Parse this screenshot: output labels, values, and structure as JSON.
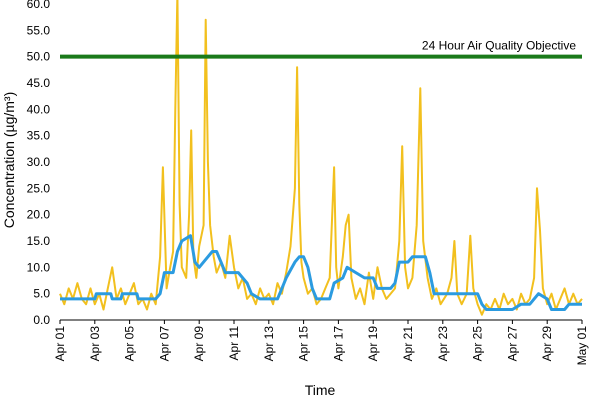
{
  "chart_data": {
    "type": "line",
    "title": "",
    "xlabel": "Time",
    "ylabel": "Concentration (µg/m³)",
    "ylim": [
      0,
      60
    ],
    "y_ticks": [
      "0.0",
      "5.0",
      "10.0",
      "15.0",
      "20.0",
      "25.0",
      "30.0",
      "35.0",
      "40.0",
      "45.0",
      "50.0",
      "55.0",
      "60.0"
    ],
    "x_range": [
      "2024-04-01",
      "2024-05-01"
    ],
    "x_ticks": [
      {
        "date": "2024-04-01",
        "label": "Apr 01"
      },
      {
        "date": "2024-04-03",
        "label": "Apr 03"
      },
      {
        "date": "2024-04-05",
        "label": "Apr 05"
      },
      {
        "date": "2024-04-07",
        "label": "Apr 07"
      },
      {
        "date": "2024-04-09",
        "label": "Apr 09"
      },
      {
        "date": "2024-04-11",
        "label": "Apr 11"
      },
      {
        "date": "2024-04-13",
        "label": "Apr 13"
      },
      {
        "date": "2024-04-15",
        "label": "Apr 15"
      },
      {
        "date": "2024-04-17",
        "label": "Apr 17"
      },
      {
        "date": "2024-04-19",
        "label": "Apr 19"
      },
      {
        "date": "2024-04-21",
        "label": "Apr 21"
      },
      {
        "date": "2024-04-23",
        "label": "Apr 23"
      },
      {
        "date": "2024-04-25",
        "label": "Apr 25"
      },
      {
        "date": "2024-04-27",
        "label": "Apr 27"
      },
      {
        "date": "2024-04-29",
        "label": "Apr 29"
      },
      {
        "date": "2024-05-01",
        "label": "May 01"
      }
    ],
    "reference_line": {
      "value": 50,
      "label": "24 Hour Air Quality Objective",
      "color": "#1a7a1a"
    },
    "grid": false,
    "series": [
      {
        "color": "#f2c01e",
        "points": [
          [
            "2024-04-01T00:00",
            5
          ],
          [
            "2024-04-01T06:00",
            3
          ],
          [
            "2024-04-01T12:00",
            6
          ],
          [
            "2024-04-01T18:00",
            4
          ],
          [
            "2024-04-02T00:00",
            7
          ],
          [
            "2024-04-02T06:00",
            4
          ],
          [
            "2024-04-02T12:00",
            3
          ],
          [
            "2024-04-02T18:00",
            6
          ],
          [
            "2024-04-03T00:00",
            3
          ],
          [
            "2024-04-03T06:00",
            5
          ],
          [
            "2024-04-03T12:00",
            2
          ],
          [
            "2024-04-03T18:00",
            6
          ],
          [
            "2024-04-04T00:00",
            10
          ],
          [
            "2024-04-04T06:00",
            4
          ],
          [
            "2024-04-04T12:00",
            6
          ],
          [
            "2024-04-04T18:00",
            3
          ],
          [
            "2024-04-05T00:00",
            5
          ],
          [
            "2024-04-05T06:00",
            7
          ],
          [
            "2024-04-05T12:00",
            3
          ],
          [
            "2024-04-05T18:00",
            4
          ],
          [
            "2024-04-06T00:00",
            2
          ],
          [
            "2024-04-06T06:00",
            5
          ],
          [
            "2024-04-06T12:00",
            3
          ],
          [
            "2024-04-06T18:00",
            12
          ],
          [
            "2024-04-06T22:00",
            29
          ],
          [
            "2024-04-07T03:00",
            6
          ],
          [
            "2024-04-07T08:00",
            10
          ],
          [
            "2024-04-07T12:00",
            13
          ],
          [
            "2024-04-07T15:00",
            40
          ],
          [
            "2024-04-07T18:00",
            62
          ],
          [
            "2024-04-07T21:00",
            22
          ],
          [
            "2024-04-08T00:00",
            10
          ],
          [
            "2024-04-08T06:00",
            8
          ],
          [
            "2024-04-08T10:00",
            20
          ],
          [
            "2024-04-08T13:00",
            36
          ],
          [
            "2024-04-08T16:00",
            12
          ],
          [
            "2024-04-08T20:00",
            8
          ],
          [
            "2024-04-09T00:00",
            14
          ],
          [
            "2024-04-09T06:00",
            18
          ],
          [
            "2024-04-09T09:00",
            57
          ],
          [
            "2024-04-09T12:00",
            30
          ],
          [
            "2024-04-09T15:00",
            18
          ],
          [
            "2024-04-09T20:00",
            12
          ],
          [
            "2024-04-10T00:00",
            9
          ],
          [
            "2024-04-10T06:00",
            11
          ],
          [
            "2024-04-10T12:00",
            8
          ],
          [
            "2024-04-10T18:00",
            16
          ],
          [
            "2024-04-11T00:00",
            10
          ],
          [
            "2024-04-11T06:00",
            6
          ],
          [
            "2024-04-11T12:00",
            8
          ],
          [
            "2024-04-11T18:00",
            4
          ],
          [
            "2024-04-12T00:00",
            5
          ],
          [
            "2024-04-12T06:00",
            3
          ],
          [
            "2024-04-12T12:00",
            6
          ],
          [
            "2024-04-12T18:00",
            4
          ],
          [
            "2024-04-13T00:00",
            5
          ],
          [
            "2024-04-13T06:00",
            3
          ],
          [
            "2024-04-13T12:00",
            7
          ],
          [
            "2024-04-13T18:00",
            5
          ],
          [
            "2024-04-14T00:00",
            9
          ],
          [
            "2024-04-14T06:00",
            14
          ],
          [
            "2024-04-14T12:00",
            25
          ],
          [
            "2024-04-14T15:00",
            48
          ],
          [
            "2024-04-14T18:00",
            22
          ],
          [
            "2024-04-14T21:00",
            11
          ],
          [
            "2024-04-15T00:00",
            8
          ],
          [
            "2024-04-15T06:00",
            5
          ],
          [
            "2024-04-15T12:00",
            6
          ],
          [
            "2024-04-15T18:00",
            3
          ],
          [
            "2024-04-16T00:00",
            4
          ],
          [
            "2024-04-16T06:00",
            6
          ],
          [
            "2024-04-16T12:00",
            8
          ],
          [
            "2024-04-16T18:00",
            29
          ],
          [
            "2024-04-16T21:00",
            10
          ],
          [
            "2024-04-17T00:00",
            6
          ],
          [
            "2024-04-17T06:00",
            12
          ],
          [
            "2024-04-17T10:00",
            18
          ],
          [
            "2024-04-17T14:00",
            20
          ],
          [
            "2024-04-17T18:00",
            8
          ],
          [
            "2024-04-18T00:00",
            4
          ],
          [
            "2024-04-18T06:00",
            6
          ],
          [
            "2024-04-18T12:00",
            3
          ],
          [
            "2024-04-18T18:00",
            9
          ],
          [
            "2024-04-19T00:00",
            4
          ],
          [
            "2024-04-19T06:00",
            10
          ],
          [
            "2024-04-19T12:00",
            6
          ],
          [
            "2024-04-19T18:00",
            4
          ],
          [
            "2024-04-20T00:00",
            5
          ],
          [
            "2024-04-20T06:00",
            6
          ],
          [
            "2024-04-20T12:00",
            15
          ],
          [
            "2024-04-20T16:00",
            33
          ],
          [
            "2024-04-20T20:00",
            10
          ],
          [
            "2024-04-21T00:00",
            6
          ],
          [
            "2024-04-21T06:00",
            8
          ],
          [
            "2024-04-21T12:00",
            18
          ],
          [
            "2024-04-21T17:00",
            44
          ],
          [
            "2024-04-21T21:00",
            15
          ],
          [
            "2024-04-22T03:00",
            8
          ],
          [
            "2024-04-22T09:00",
            4
          ],
          [
            "2024-04-22T15:00",
            6
          ],
          [
            "2024-04-22T21:00",
            3
          ],
          [
            "2024-04-23T06:00",
            5
          ],
          [
            "2024-04-23T12:00",
            8
          ],
          [
            "2024-04-23T16:00",
            15
          ],
          [
            "2024-04-23T20:00",
            5
          ],
          [
            "2024-04-24T02:00",
            3
          ],
          [
            "2024-04-24T09:00",
            5
          ],
          [
            "2024-04-24T14:00",
            16
          ],
          [
            "2024-04-24T18:00",
            6
          ],
          [
            "2024-04-25T00:00",
            3
          ],
          [
            "2024-04-25T06:00",
            1
          ],
          [
            "2024-04-25T12:00",
            3
          ],
          [
            "2024-04-25T18:00",
            2
          ],
          [
            "2024-04-26T00:00",
            4
          ],
          [
            "2024-04-26T06:00",
            2
          ],
          [
            "2024-04-26T12:00",
            5
          ],
          [
            "2024-04-26T18:00",
            3
          ],
          [
            "2024-04-27T00:00",
            4
          ],
          [
            "2024-04-27T06:00",
            2
          ],
          [
            "2024-04-27T12:00",
            5
          ],
          [
            "2024-04-27T18:00",
            3
          ],
          [
            "2024-04-28T00:00",
            4
          ],
          [
            "2024-04-28T06:00",
            8
          ],
          [
            "2024-04-28T10:00",
            25
          ],
          [
            "2024-04-28T14:00",
            17
          ],
          [
            "2024-04-28T18:00",
            6
          ],
          [
            "2024-04-29T00:00",
            3
          ],
          [
            "2024-04-29T06:00",
            5
          ],
          [
            "2024-04-29T12:00",
            2
          ],
          [
            "2024-04-29T18:00",
            4
          ],
          [
            "2024-04-30T00:00",
            6
          ],
          [
            "2024-04-30T06:00",
            3
          ],
          [
            "2024-04-30T12:00",
            5
          ],
          [
            "2024-04-30T18:00",
            3
          ],
          [
            "2024-05-01T00:00",
            4
          ]
        ]
      },
      {
        "color": "#2b9be0",
        "points": [
          [
            "2024-04-01T00:00",
            4
          ],
          [
            "2024-04-03T00:00",
            4
          ],
          [
            "2024-04-03T02:00",
            5
          ],
          [
            "2024-04-03T22:00",
            5
          ],
          [
            "2024-04-04T00:00",
            4
          ],
          [
            "2024-04-04T12:00",
            4
          ],
          [
            "2024-04-04T14:00",
            5
          ],
          [
            "2024-04-05T10:00",
            5
          ],
          [
            "2024-04-05T12:00",
            4
          ],
          [
            "2024-04-06T12:00",
            4
          ],
          [
            "2024-04-06T18:00",
            5
          ],
          [
            "2024-04-07T00:00",
            9
          ],
          [
            "2024-04-07T12:00",
            9
          ],
          [
            "2024-04-07T18:00",
            13
          ],
          [
            "2024-04-08T00:00",
            15
          ],
          [
            "2024-04-08T12:00",
            16
          ],
          [
            "2024-04-08T18:00",
            11
          ],
          [
            "2024-04-09T00:00",
            10
          ],
          [
            "2024-04-09T12:00",
            12
          ],
          [
            "2024-04-09T18:00",
            13
          ],
          [
            "2024-04-10T00:00",
            13
          ],
          [
            "2024-04-10T06:00",
            11
          ],
          [
            "2024-04-10T12:00",
            9
          ],
          [
            "2024-04-11T06:00",
            9
          ],
          [
            "2024-04-11T18:00",
            7
          ],
          [
            "2024-04-12T00:00",
            5
          ],
          [
            "2024-04-12T12:00",
            4
          ],
          [
            "2024-04-13T00:00",
            4
          ],
          [
            "2024-04-13T12:00",
            4
          ],
          [
            "2024-04-13T18:00",
            6
          ],
          [
            "2024-04-14T00:00",
            8
          ],
          [
            "2024-04-14T12:00",
            11
          ],
          [
            "2024-04-14T18:00",
            12
          ],
          [
            "2024-04-15T00:00",
            12
          ],
          [
            "2024-04-15T06:00",
            10
          ],
          [
            "2024-04-15T12:00",
            6
          ],
          [
            "2024-04-15T18:00",
            4
          ],
          [
            "2024-04-16T12:00",
            4
          ],
          [
            "2024-04-16T18:00",
            7
          ],
          [
            "2024-04-17T06:00",
            8
          ],
          [
            "2024-04-17T12:00",
            10
          ],
          [
            "2024-04-18T00:00",
            9
          ],
          [
            "2024-04-18T12:00",
            8
          ],
          [
            "2024-04-19T00:00",
            8
          ],
          [
            "2024-04-19T06:00",
            6
          ],
          [
            "2024-04-20T00:00",
            6
          ],
          [
            "2024-04-20T06:00",
            7
          ],
          [
            "2024-04-20T12:00",
            11
          ],
          [
            "2024-04-21T00:00",
            11
          ],
          [
            "2024-04-21T06:00",
            12
          ],
          [
            "2024-04-22T00:00",
            12
          ],
          [
            "2024-04-22T06:00",
            9
          ],
          [
            "2024-04-22T12:00",
            5
          ],
          [
            "2024-04-25T00:00",
            5
          ],
          [
            "2024-04-25T06:00",
            3
          ],
          [
            "2024-04-25T12:00",
            2
          ],
          [
            "2024-04-27T00:00",
            2
          ],
          [
            "2024-04-27T12:00",
            3
          ],
          [
            "2024-04-28T00:00",
            3
          ],
          [
            "2024-04-28T12:00",
            5
          ],
          [
            "2024-04-29T00:00",
            4
          ],
          [
            "2024-04-29T06:00",
            2
          ],
          [
            "2024-04-30T00:00",
            2
          ],
          [
            "2024-04-30T06:00",
            3
          ],
          [
            "2024-05-01T00:00",
            3
          ]
        ]
      }
    ]
  }
}
